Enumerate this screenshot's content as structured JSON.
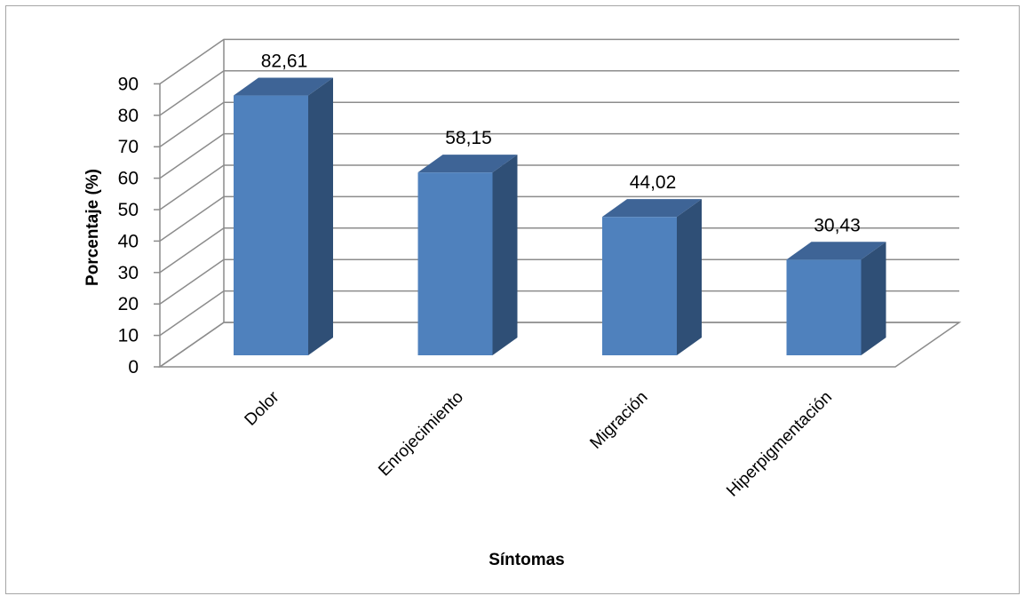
{
  "chart_data": {
    "type": "bar",
    "categories": [
      "Dolor",
      "Enrojecimiento",
      "Migración",
      "Hiperpigmentación"
    ],
    "values": [
      82.61,
      58.15,
      44.02,
      30.43
    ],
    "value_labels": [
      "82,61",
      "58,15",
      "44,02",
      "30,43"
    ],
    "title": "",
    "xlabel": "Síntomas",
    "ylabel": "Porcentaje (%)",
    "ylim": [
      0,
      90
    ],
    "yticks": [
      0,
      10,
      20,
      30,
      40,
      50,
      60,
      70,
      80,
      90
    ],
    "grid": true,
    "three_d": true,
    "colors": {
      "bar_front": "#4f81bd",
      "bar_side": "#2f4f76",
      "bar_top": "#3e6496",
      "grid": "#8c8c8c",
      "frame": "#a6a6a6"
    }
  }
}
